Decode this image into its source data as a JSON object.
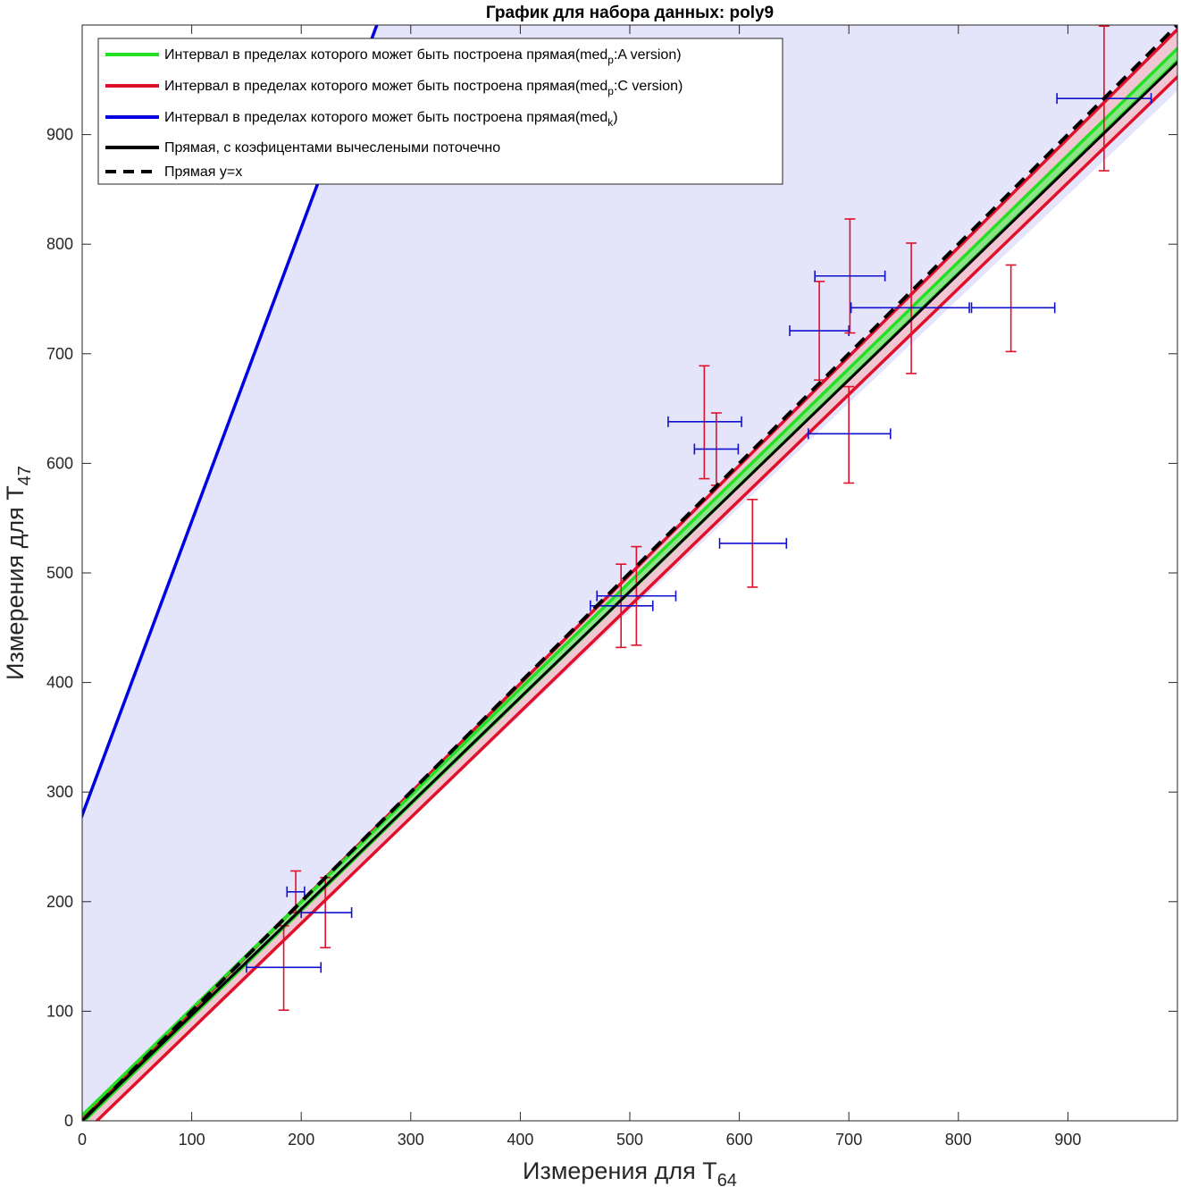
{
  "chart_data": {
    "type": "line",
    "title": "График для набора данных: poly9",
    "xlabel": {
      "main": "Измерения для T",
      "sub": "64"
    },
    "ylabel": {
      "main": "Измерения для T",
      "sub": "47"
    },
    "xlim": [
      0,
      1000
    ],
    "ylim": [
      0,
      1000
    ],
    "xticks": [
      0,
      100,
      200,
      300,
      400,
      500,
      600,
      700,
      800,
      900
    ],
    "yticks": [
      0,
      100,
      200,
      300,
      400,
      500,
      600,
      700,
      800,
      900
    ],
    "grid": false,
    "legend_position": "top-left",
    "colors": {
      "band_fill": "#e4e4fb",
      "red_band_fill": "#f0c6d2",
      "green_band_fill": "#8ee38a",
      "green": "#22e022",
      "red": "#e0102a",
      "blue": "#0000e0",
      "black": "#000000",
      "ycap_red": "#e0102a",
      "xcap_blue": "#1010d0"
    },
    "legend": [
      {
        "color": "#22e022",
        "dashed": false,
        "pre": "Интервал в пределах которого может быть построена прямая(med",
        "sub": "p",
        "post": ":A version)"
      },
      {
        "color": "#e0102a",
        "dashed": false,
        "pre": "Интервал в пределах которого может быть построена прямая(med",
        "sub": "p",
        "post": ":C version)"
      },
      {
        "color": "#0000e0",
        "dashed": false,
        "pre": "Интервал в пределах которого может быть построена прямая(med",
        "sub": "k",
        "post": ")"
      },
      {
        "color": "#000000",
        "dashed": false,
        "pre": "Прямая, с коэфицентами вычеслеными поточечно",
        "sub": "",
        "post": ""
      },
      {
        "color": "#000000",
        "dashed": true,
        "pre": "Прямая y=x",
        "sub": "",
        "post": ""
      }
    ],
    "lines": {
      "blue_upper": {
        "slope": 2.68,
        "intercept": 279
      },
      "blue_lower": {
        "slope": 0.95,
        "intercept": -10
      },
      "red_upper": {
        "slope": 0.995,
        "intercept": 1
      },
      "red_lower": {
        "slope": 0.9656,
        "intercept": -13
      },
      "green_upper": {
        "slope": 0.9735,
        "intercept": 5
      },
      "green_lower": {
        "slope": 0.9695,
        "intercept": -2
      },
      "point_fit": {
        "slope": 0.966,
        "intercept": 0
      },
      "identity": {
        "slope": 1.0,
        "intercept": 0
      }
    },
    "points": [
      {
        "x": 184,
        "y": 140,
        "x_lo": 150,
        "x_hi": 218,
        "y_lo": 101,
        "y_hi": 178
      },
      {
        "x": 195,
        "y": 209,
        "x_lo": 187,
        "x_hi": 203,
        "y_lo": 190,
        "y_hi": 228
      },
      {
        "x": 222,
        "y": 190,
        "x_lo": 200,
        "x_hi": 246,
        "y_lo": 158,
        "y_hi": 222
      },
      {
        "x": 492,
        "y": 470,
        "x_lo": 464,
        "x_hi": 521,
        "y_lo": 432,
        "y_hi": 508
      },
      {
        "x": 506,
        "y": 479,
        "x_lo": 470,
        "x_hi": 542,
        "y_lo": 434,
        "y_hi": 524
      },
      {
        "x": 612,
        "y": 527,
        "x_lo": 582,
        "x_hi": 643,
        "y_lo": 487,
        "y_hi": 567
      },
      {
        "x": 568,
        "y": 638,
        "x_lo": 535,
        "x_hi": 602,
        "y_lo": 586,
        "y_hi": 689
      },
      {
        "x": 579,
        "y": 613,
        "x_lo": 559,
        "x_hi": 599,
        "y_lo": 580,
        "y_hi": 646
      },
      {
        "x": 673,
        "y": 721,
        "x_lo": 646,
        "x_hi": 700,
        "y_lo": 676,
        "y_hi": 766
      },
      {
        "x": 700,
        "y": 627,
        "x_lo": 663,
        "x_hi": 738,
        "y_lo": 582,
        "y_hi": 670
      },
      {
        "x": 701,
        "y": 771,
        "x_lo": 669,
        "x_hi": 733,
        "y_lo": 719,
        "y_hi": 823
      },
      {
        "x": 757,
        "y": 742,
        "x_lo": 702,
        "x_hi": 810,
        "y_lo": 682,
        "y_hi": 801
      },
      {
        "x": 848,
        "y": 742,
        "x_lo": 812,
        "x_hi": 888,
        "y_lo": 702,
        "y_hi": 781
      },
      {
        "x": 933,
        "y": 933,
        "x_lo": 890,
        "x_hi": 976,
        "y_lo": 867,
        "y_hi": 999
      }
    ]
  }
}
